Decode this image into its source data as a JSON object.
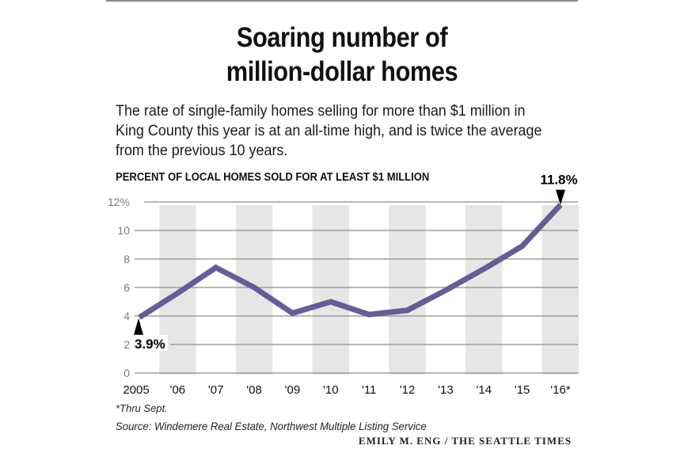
{
  "header": {
    "title_line1": "Soaring number of",
    "title_line2": "million-dollar homes",
    "subtitle": "The rate of single-family homes selling for more than $1 million in King County this year is at an all-time high, and is twice the average from the previous 10 years."
  },
  "footer": {
    "footnote": "*Thru Sept.",
    "source": "Source: Windemere Real Estate, Northwest Multiple Listing Service",
    "credit": "EMILY M. ENG / THE SEATTLE TIMES"
  },
  "colors": {
    "line": "#645d96",
    "band": "#e6e6e6",
    "grid": "#8c8c8c",
    "axis_text": "#7a7a7a"
  },
  "chart_data": {
    "type": "line",
    "title": "PERCENT OF LOCAL HOMES SOLD FOR AT LEAST $1 MILLION",
    "xlabel": "",
    "ylabel": "",
    "categories": [
      "2005",
      "'06",
      "'07",
      "'08",
      "'09",
      "'10",
      "'11",
      "'12",
      "'13",
      "'14",
      "'15",
      "'16*"
    ],
    "series": [
      {
        "name": "Percent sold for at least $1 million",
        "values": [
          3.9,
          5.6,
          7.4,
          6.0,
          4.2,
          5.0,
          4.1,
          4.4,
          5.8,
          7.3,
          8.9,
          11.8
        ]
      }
    ],
    "ylim": [
      0,
      12
    ],
    "yticks": [
      0,
      2,
      4,
      6,
      8,
      10,
      12
    ],
    "ytick_labels": [
      "0",
      "2",
      "4",
      "6",
      "8",
      "10",
      "12%"
    ],
    "grid": true,
    "alternating_bands": true,
    "annotations": [
      {
        "index": 0,
        "text": "3.9%",
        "position": "below"
      },
      {
        "index": 11,
        "text": "11.8%",
        "position": "above"
      }
    ]
  }
}
